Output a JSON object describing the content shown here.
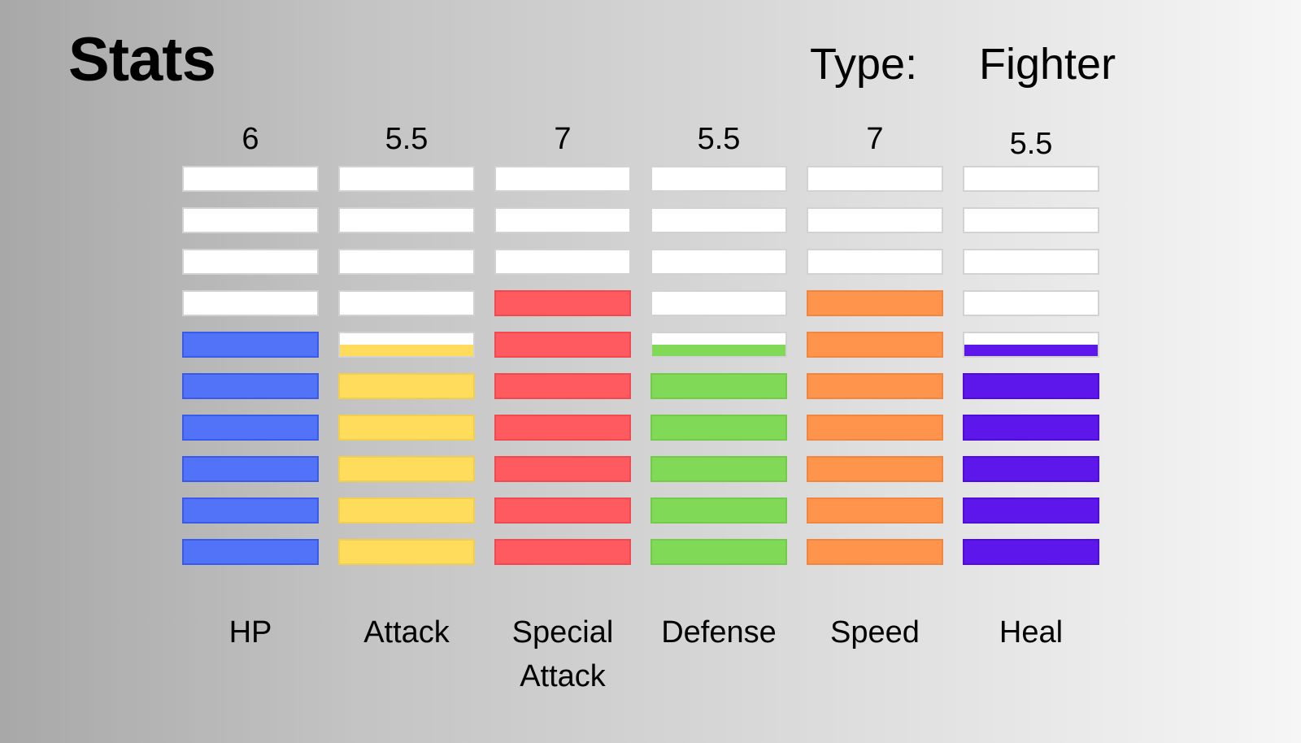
{
  "header": {
    "title": "Stats",
    "type_label": "Type:",
    "type_value": "Fighter"
  },
  "segments_per_bar": 10,
  "stats": [
    {
      "key": "hp",
      "label": "HP",
      "value_text": "6",
      "value": 6,
      "color": "#5273f7",
      "border": "#3a5be8"
    },
    {
      "key": "attack",
      "label": "Attack",
      "value_text": "5.5",
      "value": 5.5,
      "color": "#ffdc5c",
      "border": "#f0ce50"
    },
    {
      "key": "special-attack",
      "label": "Special Attack",
      "value_text": "7",
      "value": 7,
      "color": "#ff5a5f",
      "border": "#f04a50"
    },
    {
      "key": "defense",
      "label": "Defense",
      "value_text": "5.5",
      "value": 5.5,
      "color": "#80d957",
      "border": "#72cc4a"
    },
    {
      "key": "speed",
      "label": "Speed",
      "value_text": "7",
      "value": 7,
      "color": "#ff944d",
      "border": "#f08640"
    },
    {
      "key": "heal",
      "label": "Heal",
      "value_text": "5.5",
      "value": 5.5,
      "color": "#5e17eb",
      "border": "#4e0ddb"
    }
  ]
}
